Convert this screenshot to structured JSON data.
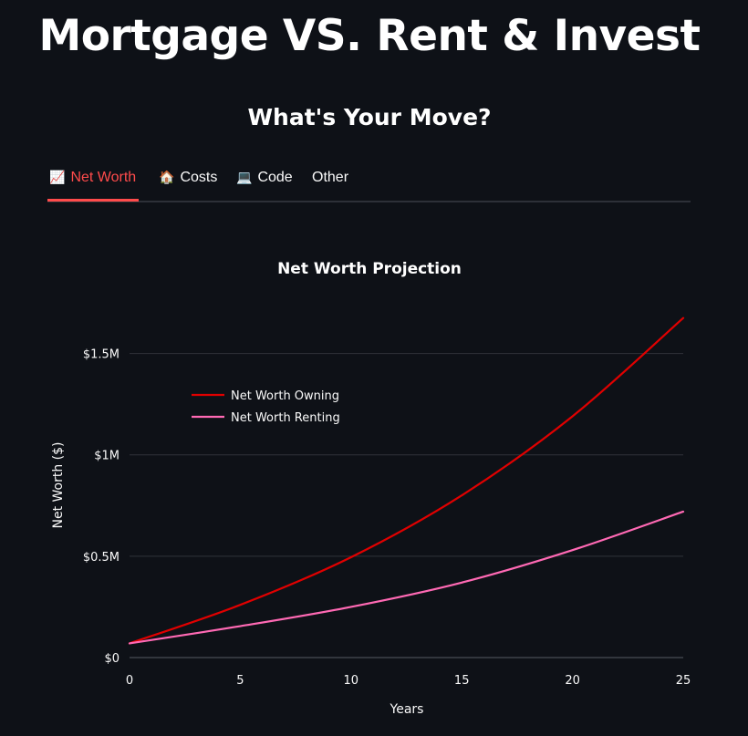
{
  "header": {
    "title": "Mortgage VS. Rent & Invest",
    "subtitle": "What's Your Move?"
  },
  "tabs": [
    {
      "icon": "📈",
      "icon_name": "chart-increasing-icon",
      "label": "Net Worth",
      "active": true
    },
    {
      "icon": "🏠",
      "icon_name": "house-icon",
      "label": "Costs",
      "active": false
    },
    {
      "icon": "💻",
      "icon_name": "laptop-icon",
      "label": "Code",
      "active": false
    },
    {
      "icon": "",
      "icon_name": "",
      "label": "Other",
      "active": false
    }
  ],
  "colors": {
    "background": "#0e1117",
    "accent": "#ff4b4b",
    "owning": "#e00000",
    "renting": "#ff69b4",
    "grid": "#30333a"
  },
  "chart_data": {
    "type": "line",
    "title": "Net Worth Projection",
    "xlabel": "Years",
    "ylabel": "Net Worth ($)",
    "xlim": [
      0,
      25
    ],
    "ylim": [
      0,
      1750000
    ],
    "x_ticks": [
      0,
      5,
      10,
      15,
      20,
      25
    ],
    "x_tick_labels": [
      "0",
      "5",
      "10",
      "15",
      "20",
      "25"
    ],
    "y_ticks": [
      0,
      500000,
      1000000,
      1500000
    ],
    "y_tick_labels": [
      "$0",
      "$0.5M",
      "$1M",
      "$1.5M"
    ],
    "grid": "horizontal",
    "legend_position": "upper-left",
    "x": [
      0,
      5,
      10,
      15,
      20,
      25
    ],
    "series": [
      {
        "name": "Net Worth Owning",
        "color": "#e00000",
        "values": [
          70000,
          260000,
          495000,
          800000,
          1190000,
          1675000
        ]
      },
      {
        "name": "Net Worth Renting",
        "color": "#ff69b4",
        "values": [
          70000,
          155000,
          250000,
          370000,
          530000,
          720000
        ]
      }
    ]
  }
}
